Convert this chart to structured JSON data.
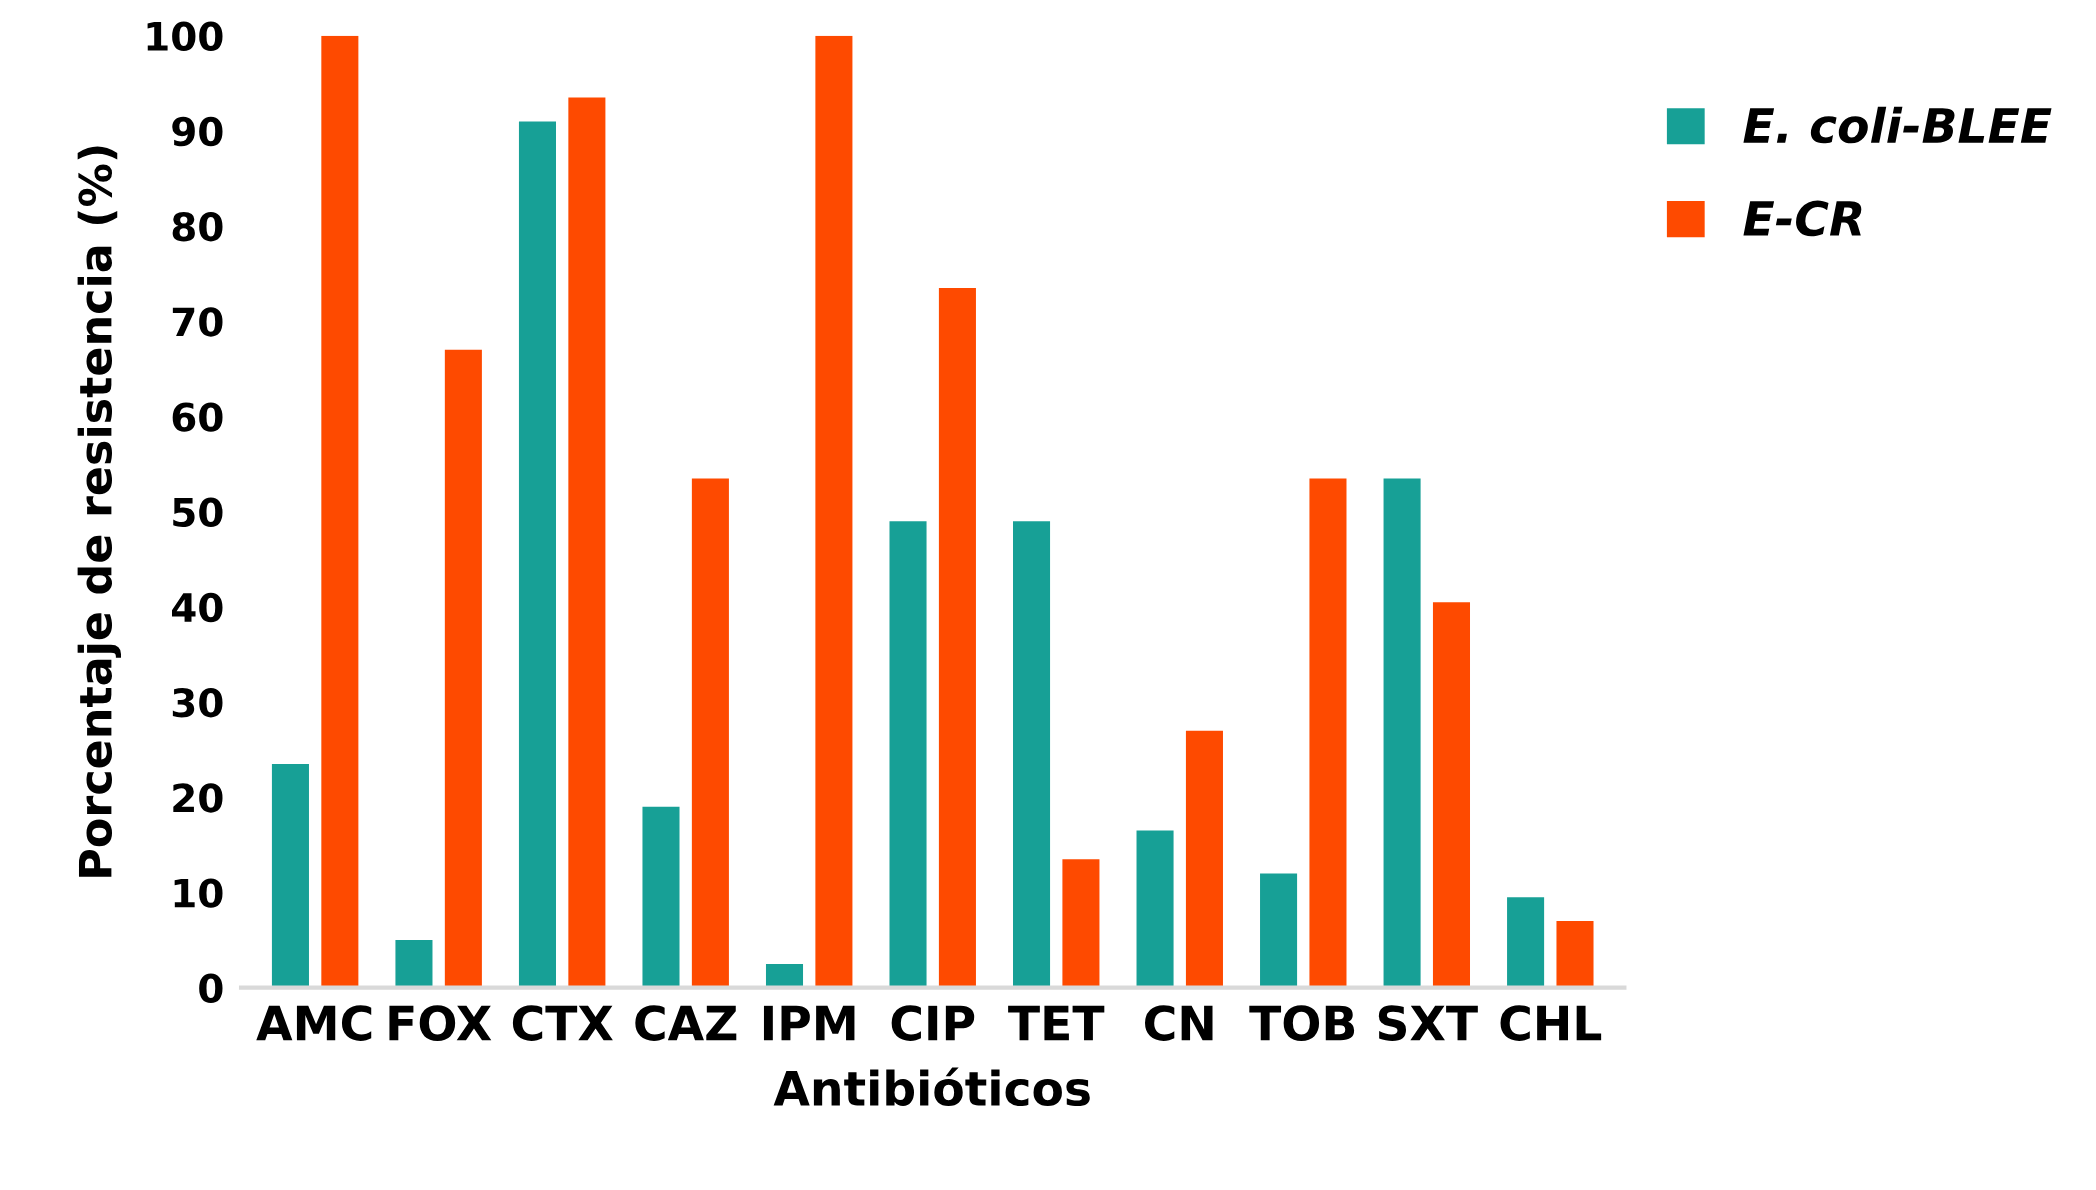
{
  "chart_data": {
    "type": "bar",
    "xlabel": "Antibióticos",
    "ylabel": "Porcentaje de resistencia (%)",
    "categories": [
      "AMC",
      "FOX",
      "CTX",
      "CAZ",
      "IPM",
      "CIP",
      "TET",
      "CN",
      "TOB",
      "SXT",
      "CHL"
    ],
    "series": [
      {
        "name": "E. coli-BLEE",
        "color": "#17a096",
        "values": [
          23.5,
          5,
          91,
          19,
          2.5,
          49,
          49,
          16.5,
          12,
          53.5,
          9.5
        ]
      },
      {
        "name": "E-CR",
        "color": "#fe4a00",
        "values": [
          100,
          67,
          93.5,
          53.5,
          100,
          73.5,
          13.5,
          27,
          53.5,
          40.5,
          7
        ]
      }
    ],
    "ylim": [
      0,
      100
    ],
    "yticks": [
      0,
      10,
      20,
      30,
      40,
      50,
      60,
      70,
      80,
      90,
      100
    ],
    "grid": false,
    "legend": "top right"
  }
}
